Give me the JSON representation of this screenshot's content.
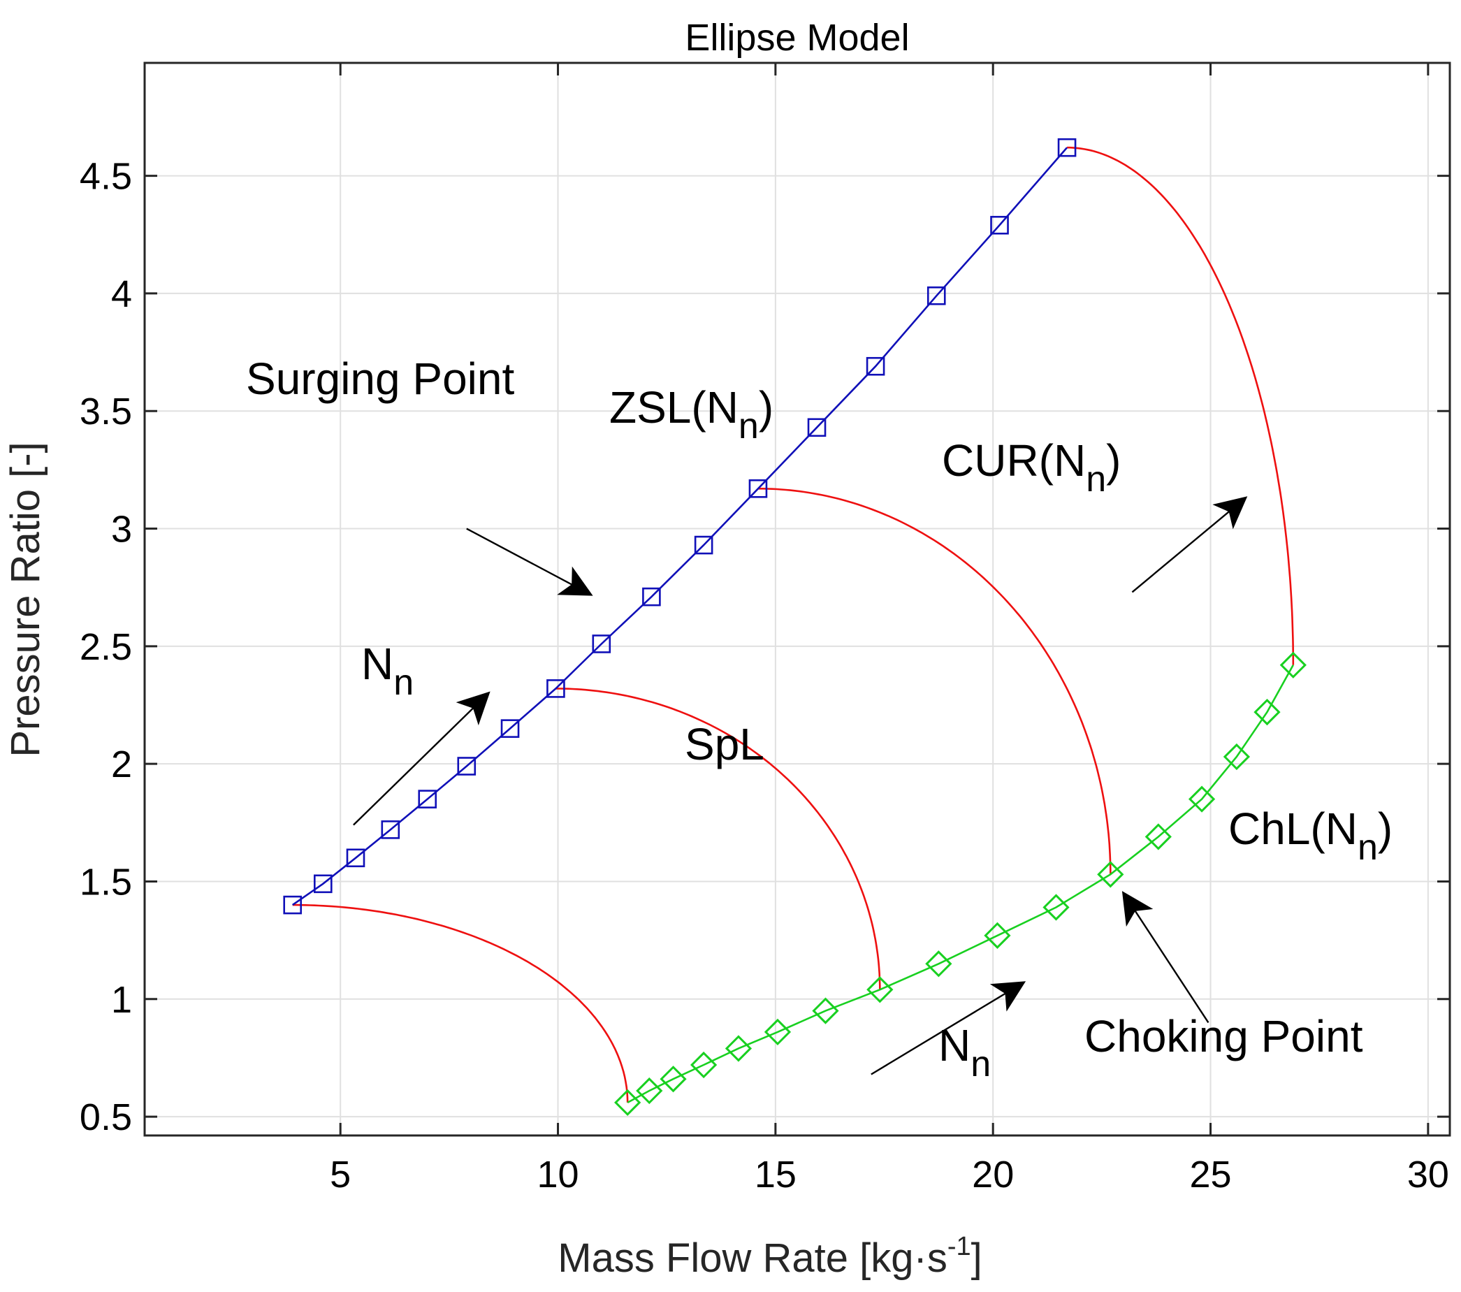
{
  "chart_data": {
    "type": "line",
    "title": "Ellipse Model",
    "xlabel": "Mass Flow Rate [kg·s",
    "xlabel_sup": "-1",
    "xlabel_end": "]",
    "ylabel": "Pressure Ratio [-]",
    "xlim": [
      0.5,
      30.5
    ],
    "ylim": [
      0.42,
      4.98
    ],
    "grid": true,
    "xticks": [
      5,
      10,
      15,
      20,
      25,
      30
    ],
    "xtick_labels": [
      "5",
      "10",
      "15",
      "20",
      "25",
      "30"
    ],
    "yticks": [
      0.5,
      1,
      1.5,
      2,
      2.5,
      3,
      3.5,
      4,
      4.5
    ],
    "ytick_labels": [
      "0.5",
      "1",
      "1.5",
      "2",
      "2.5",
      "3",
      "3.5",
      "4",
      "4.5"
    ],
    "colors": {
      "surge": "#1010b8",
      "choke": "#18d020",
      "speed": "#ee1010",
      "axis": "#262626",
      "grid": "#e0e0e0"
    },
    "series": [
      {
        "name": "ZSL(Nn)",
        "marker": "square",
        "points": [
          [
            3.9,
            1.4
          ],
          [
            4.6,
            1.49
          ],
          [
            5.35,
            1.6
          ],
          [
            6.15,
            1.72
          ],
          [
            7.0,
            1.85
          ],
          [
            7.9,
            1.99
          ],
          [
            8.9,
            2.15
          ],
          [
            9.95,
            2.32
          ],
          [
            11.0,
            2.51
          ],
          [
            12.15,
            2.71
          ],
          [
            13.35,
            2.93
          ],
          [
            14.6,
            3.17
          ],
          [
            15.95,
            3.43
          ],
          [
            17.3,
            3.69
          ],
          [
            18.7,
            3.99
          ],
          [
            20.15,
            4.29
          ],
          [
            21.7,
            4.62
          ]
        ]
      },
      {
        "name": "ChL(Nn)",
        "marker": "diamond",
        "points": [
          [
            11.6,
            0.56
          ],
          [
            12.1,
            0.61
          ],
          [
            12.65,
            0.66
          ],
          [
            13.35,
            0.72
          ],
          [
            14.15,
            0.79
          ],
          [
            15.05,
            0.86
          ],
          [
            16.15,
            0.95
          ],
          [
            17.4,
            1.04
          ],
          [
            18.75,
            1.15
          ],
          [
            20.1,
            1.27
          ],
          [
            21.45,
            1.39
          ],
          [
            22.7,
            1.53
          ],
          [
            23.8,
            1.69
          ],
          [
            24.8,
            1.85
          ],
          [
            25.6,
            2.03
          ],
          [
            26.3,
            2.22
          ],
          [
            26.9,
            2.42
          ]
        ]
      },
      {
        "name": "SpL",
        "marker": "none",
        "curves": [
          {
            "start": [
              3.9,
              1.4
            ],
            "end": [
              11.6,
              0.56
            ]
          },
          {
            "start": [
              9.95,
              2.32
            ],
            "end": [
              17.4,
              1.04
            ]
          },
          {
            "start": [
              14.6,
              3.17
            ],
            "end": [
              22.7,
              1.53
            ]
          },
          {
            "start": [
              21.7,
              4.62
            ],
            "end": [
              26.9,
              2.42
            ]
          }
        ]
      }
    ],
    "annotations": [
      {
        "id": "surging",
        "text": "Surging Point",
        "arrow_from": [
          7.9,
          3.0
        ],
        "arrow_to": [
          10.75,
          2.72
        ]
      },
      {
        "id": "zsl",
        "text": "ZSL(N",
        "sub": "n",
        "end": ")"
      },
      {
        "id": "cur",
        "text": "CUR(N",
        "sub": "n",
        "end": ")",
        "arrow_from": [
          23.2,
          2.73
        ],
        "arrow_to": [
          25.8,
          3.13
        ]
      },
      {
        "id": "nn-upper",
        "text": "N",
        "sub": "n",
        "arrow_from": [
          5.3,
          1.74
        ],
        "arrow_to": [
          8.4,
          2.3
        ]
      },
      {
        "id": "spl",
        "text": "SpL"
      },
      {
        "id": "chl",
        "text": "ChL(N",
        "sub": "n",
        "end": ")"
      },
      {
        "id": "nn-lower",
        "text": "N",
        "sub": "n",
        "arrow_from": [
          17.2,
          0.68
        ],
        "arrow_to": [
          20.7,
          1.07
        ]
      },
      {
        "id": "choking",
        "text": "Choking Point",
        "arrow_from": [
          24.95,
          0.9
        ],
        "arrow_to": [
          23.0,
          1.45
        ]
      }
    ]
  }
}
